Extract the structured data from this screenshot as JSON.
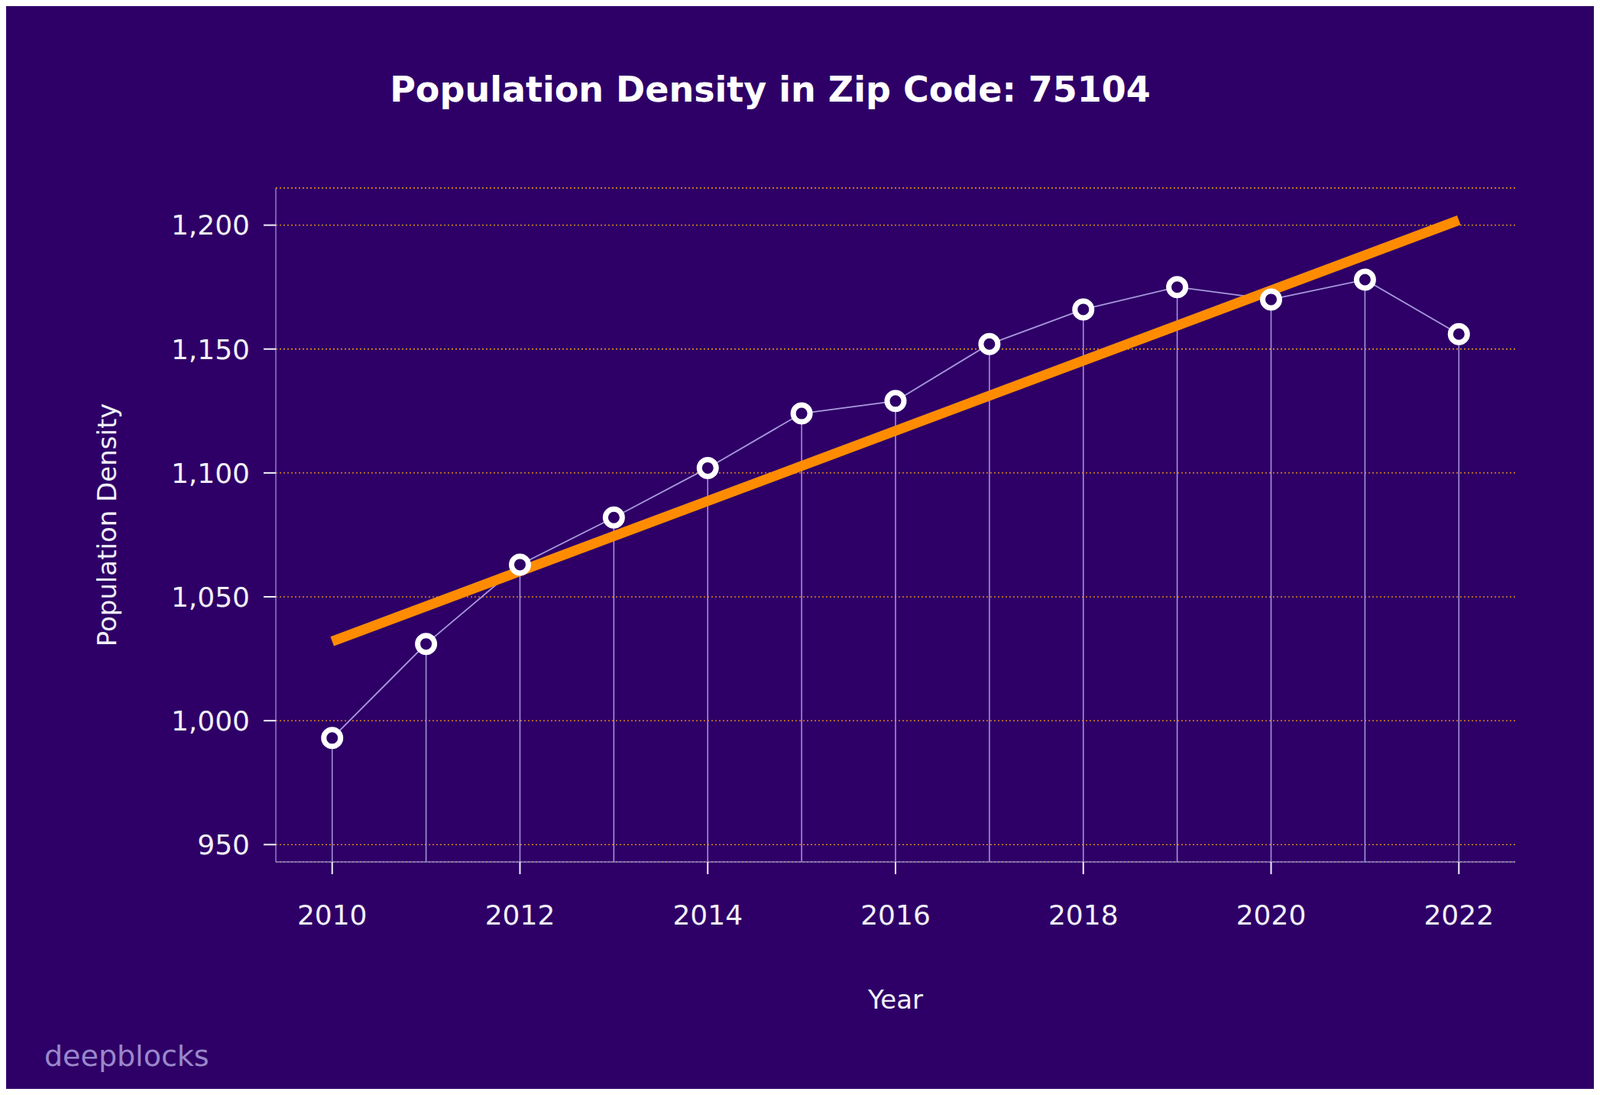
{
  "chart_data": {
    "type": "line",
    "title": "Population Density in Zip Code: 75104",
    "x_label": "Year",
    "y_label": "Population Density",
    "watermark": "deepblocks",
    "x": [
      2010,
      2011,
      2012,
      2013,
      2014,
      2015,
      2016,
      2017,
      2018,
      2019,
      2020,
      2021,
      2022
    ],
    "series": [
      {
        "type": "line",
        "color": "#ffffff",
        "marker": "circle",
        "line_style": "solid",
        "values": [
          993,
          1031,
          1063,
          1082,
          1102,
          1124,
          1129,
          1152,
          1166,
          1175,
          1170,
          1178,
          1156
        ]
      },
      {
        "type": "line",
        "color": "#ff8c00",
        "marker": "none",
        "line_style": "solid",
        "x": [
          2010,
          2022
        ],
        "values": [
          1032,
          1202
        ]
      }
    ],
    "xlim": [
      2009.4,
      2022.6
    ],
    "xticks": [
      2010,
      2012,
      2014,
      2016,
      2018,
      2020,
      2022
    ],
    "ylim": [
      943,
      1215
    ],
    "yticks": [
      950,
      {
        "value": 1000,
        "label": "1,000"
      },
      {
        "value": 1050,
        "label": "1,050"
      },
      {
        "value": 1100,
        "label": "1,100"
      },
      {
        "value": 1150,
        "label": "1,150"
      },
      {
        "value": 1200,
        "label": "1,200"
      }
    ],
    "grid": true
  }
}
